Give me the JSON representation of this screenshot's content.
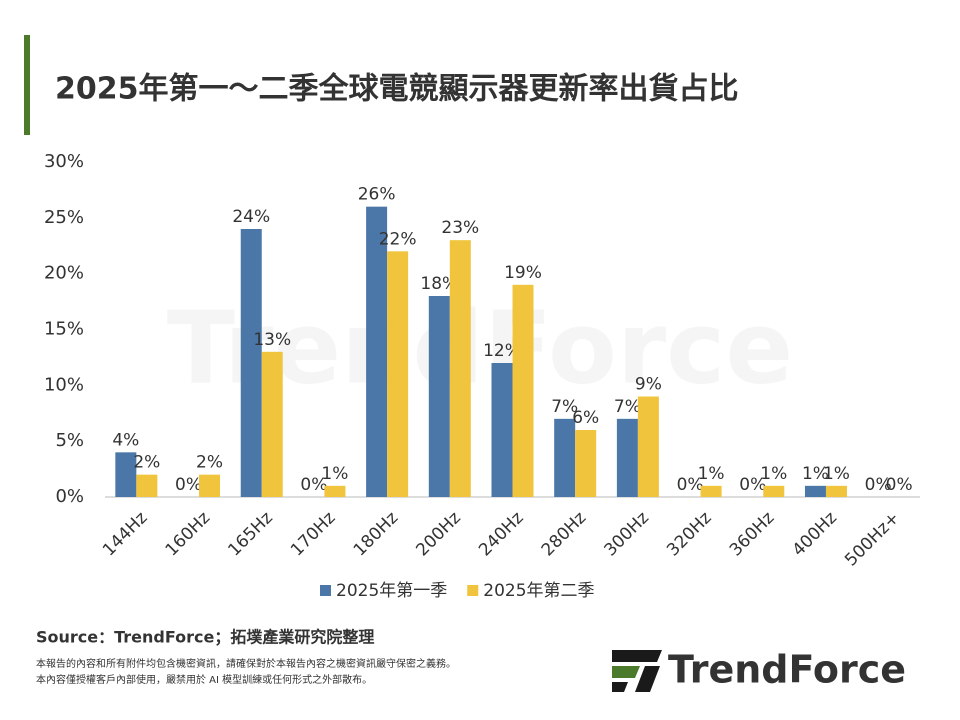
{
  "chart_data": {
    "type": "bar",
    "title": "2025年第一～二季全球電競顯示器更新率出貨占比",
    "categories": [
      "144Hz",
      "160Hz",
      "165Hz",
      "170Hz",
      "180Hz",
      "200Hz",
      "240Hz",
      "280Hz",
      "300Hz",
      "320Hz",
      "360Hz",
      "400Hz",
      "500Hz+"
    ],
    "series": [
      {
        "name": "2025年第一季",
        "color": "#4a76a8",
        "values": [
          4,
          0,
          24,
          0,
          26,
          18,
          12,
          7,
          7,
          0,
          0,
          1,
          0
        ],
        "value_labels": [
          "4%",
          "0%",
          "24%",
          "0%",
          "26%",
          "18%",
          "12%",
          "7%",
          "7%",
          "0%",
          "0%",
          "1%",
          "0%"
        ]
      },
      {
        "name": "2025年第二季",
        "color": "#f0c43c",
        "values": [
          2,
          2,
          13,
          1,
          22,
          23,
          19,
          6,
          9,
          1,
          1,
          1,
          0
        ],
        "value_labels": [
          "2%",
          "2%",
          "13%",
          "1%",
          "22%",
          "23%",
          "19%",
          "6%",
          "9%",
          "1%",
          "1%",
          "1%",
          "0%"
        ]
      }
    ],
    "ylim": [
      0,
      30
    ],
    "yticks": [
      {
        "value": 0,
        "label": "0%"
      },
      {
        "value": 5,
        "label": "5%"
      },
      {
        "value": 10,
        "label": "10%"
      },
      {
        "value": 15,
        "label": "15%"
      },
      {
        "value": 20,
        "label": "20%"
      },
      {
        "value": 25,
        "label": "25%"
      },
      {
        "value": 30,
        "label": "30%"
      }
    ],
    "source": "Source：TrendForce；拓墣產業研究院整理",
    "notes": [
      "本報告的內容和所有附件均包含機密資訊，請確保對於本報告內容之機密資訊嚴守保密之義務。",
      "本內容僅授權客戶內部使用，嚴禁用於 AI 模型訓練或任何形式之外部散布。"
    ],
    "logo": "TrendForce"
  }
}
